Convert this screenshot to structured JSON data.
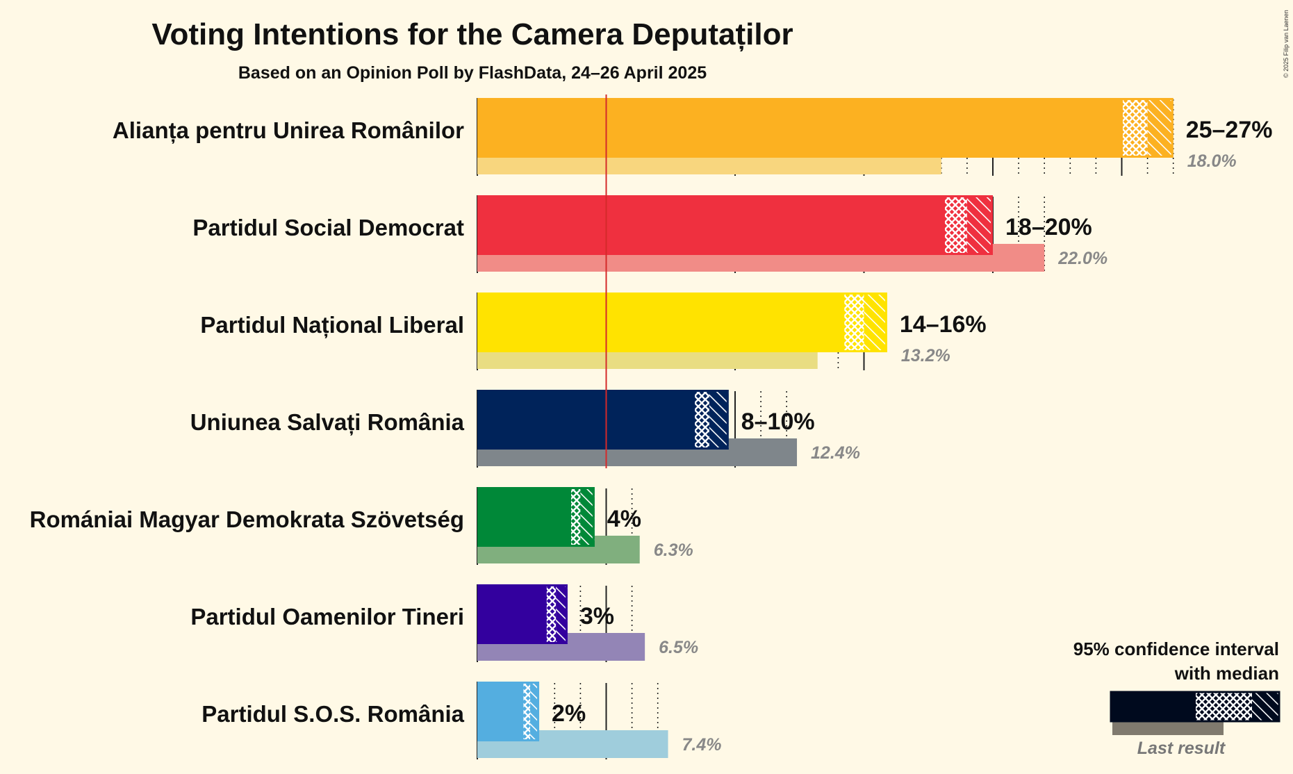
{
  "chart_data": {
    "type": "bar",
    "title": "Voting Intentions for the Camera Deputaților",
    "subtitle": "Based on an Opinion Poll by FlashData, 24–26 April 2025",
    "copyright": "© 2025 Filip van Laenen",
    "threshold": 5,
    "xlim": [
      0,
      27
    ],
    "parties": [
      {
        "name": "Alianța pentru Unirea Românilor",
        "range_label": "25–27%",
        "last_label": "18.0%",
        "low": 25.0,
        "median": 26.0,
        "high": 27.0,
        "last": 18.0,
        "color": "#FCB121",
        "last_color": "#F8D67E"
      },
      {
        "name": "Partidul Social Democrat",
        "range_label": "18–20%",
        "last_label": "22.0%",
        "low": 18.1,
        "median": 19.0,
        "high": 20.0,
        "last": 22.0,
        "color": "#EF303F",
        "last_color": "#F18C87"
      },
      {
        "name": "Partidul Național Liberal",
        "range_label": "14–16%",
        "last_label": "13.2%",
        "low": 14.2,
        "median": 15.0,
        "high": 15.9,
        "last": 13.2,
        "color": "#FFE300",
        "last_color": "#E9DD82"
      },
      {
        "name": "Uniunea Salvați România",
        "range_label": "8–10%",
        "last_label": "12.4%",
        "low": 8.4,
        "median": 9.0,
        "high": 9.75,
        "last": 12.4,
        "color": "#00235A",
        "last_color": "#7F868B"
      },
      {
        "name": "Romániai Magyar Demokrata Szövetség",
        "range_label": "4%",
        "last_label": "6.3%",
        "low": 3.6,
        "median": 4.0,
        "high": 4.55,
        "last": 6.3,
        "color": "#008838",
        "last_color": "#80AF7E"
      },
      {
        "name": "Partidul Oamenilor Tineri",
        "range_label": "3%",
        "last_label": "6.5%",
        "low": 2.65,
        "median": 3.05,
        "high": 3.5,
        "last": 6.5,
        "color": "#33009E",
        "last_color": "#9385B6"
      },
      {
        "name": "Partidul S.O.S. România",
        "range_label": "2%",
        "last_label": "7.4%",
        "low": 1.75,
        "median": 2.05,
        "high": 2.4,
        "last": 7.4,
        "color": "#54AEE0",
        "last_color": "#9FCDDC"
      }
    ],
    "legend": {
      "line1": "95% confidence interval",
      "line2": "with median",
      "last_result": "Last result",
      "color": "#000A1E",
      "last_color": "#807A6E"
    }
  }
}
